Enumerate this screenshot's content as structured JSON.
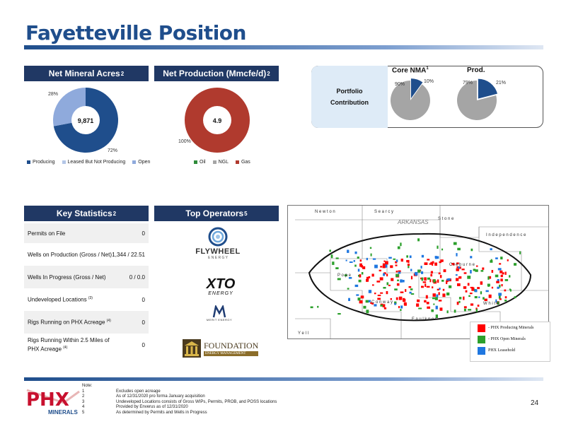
{
  "title": "Fayetteville Position",
  "net_mineral_acres": {
    "header": "Net Mineral Acres",
    "header_sup": "2",
    "center_value": "9,871",
    "label_open_pct": "28%",
    "label_producing_pct": "72%",
    "legend": [
      "Producing",
      "Leased But Not Producing",
      "Open"
    ],
    "colors": {
      "producing": "#1f4e8c",
      "leased": "#b4c7e7",
      "open": "#8faadc"
    }
  },
  "net_production": {
    "header": "Net Production (Mmcfe/d)",
    "header_sup": "2",
    "center_value": "4.9",
    "label_gas_pct": "100%",
    "legend": [
      "Oil",
      "NGL",
      "Gas"
    ],
    "colors": {
      "oil": "#2e8b3a",
      "ngl": "#a5a5a5",
      "gas": "#b03a2e"
    }
  },
  "portfolio": {
    "label_line1": "Portfolio",
    "label_line2": "Contribution",
    "core_nma": {
      "title": "Core NMA",
      "title_sup": "1",
      "rest_label": "90%",
      "slice_label": "10%"
    },
    "prod": {
      "title": "Prod.",
      "rest_label": "79%",
      "slice_label": "21%"
    },
    "colors": {
      "slice": "#1f4e8c",
      "rest": "#a5a5a5"
    }
  },
  "chart_data": [
    {
      "type": "pie",
      "categories": [
        "Producing",
        "Leased But Not Producing",
        "Open"
      ],
      "values": [
        72,
        0,
        28
      ]
    },
    {
      "type": "pie",
      "categories": [
        "Oil",
        "NGL",
        "Gas"
      ],
      "values": [
        0,
        0,
        100
      ]
    },
    {
      "type": "pie",
      "title": "Core NMA",
      "values": [
        10,
        90
      ]
    },
    {
      "type": "pie",
      "title": "Prod.",
      "values": [
        21,
        79
      ]
    }
  ],
  "key_statistics": {
    "header": "Key Statistics",
    "header_sup": "2",
    "rows": [
      {
        "label": "Permits on File",
        "sup": "",
        "value": "0"
      },
      {
        "label": "Wells on Production (Gross / Net)",
        "sup": "",
        "value": "1,344 / 22.51"
      },
      {
        "label": "Wells In Progress (Gross / Net)",
        "sup": "",
        "value": "0 / 0.0"
      },
      {
        "label": "Undeveloped Locations",
        "sup": "(3)",
        "value": "0"
      },
      {
        "label": "Rigs Running on PHX Acreage",
        "sup": "(4)",
        "value": "0"
      },
      {
        "label": "Rigs Running Within 2.5 Miles of",
        "label2": "PHX Acreage",
        "sup": "(4)",
        "value": "0"
      }
    ]
  },
  "top_operators": {
    "header": "Top Operators",
    "header_sup": "5",
    "flywheel": {
      "name": "FLYWHEEL",
      "sub": "E N E R G Y"
    },
    "xto": {
      "name": "XTO",
      "sub": "ENERGY"
    },
    "merit": {
      "name": "MERIT ENERGY"
    },
    "foundation": {
      "name": "FOUNDATION",
      "sub": "ENERGY MANAGEMENT"
    }
  },
  "map": {
    "labels": {
      "newton": "N e w t o n",
      "searcy": "S e a r c y",
      "arkansas": "ARKANSAS",
      "stone": "S t o n e",
      "independence": "I n d e p e n d e n c e",
      "pope": "P o p e",
      "cleburne": "C l e b u r n e",
      "conway": "C o n w a y",
      "white": "W h i t e",
      "faulkner": "F a u l k n e r",
      "yell": "Y e l l"
    },
    "legend": [
      {
        "label": "- PHX Producing Minerals",
        "color": "#ff0000"
      },
      {
        "label": "- PHX Open Minerals",
        "color": "#2ca02c"
      },
      {
        "label": "PHX Leasehold",
        "color": "#1f77e0"
      }
    ]
  },
  "logo": {
    "main": "PHX",
    "sub": "MINERALS"
  },
  "notes": {
    "heading": "Note:",
    "items": [
      {
        "num": "1",
        "text": "Excludes open acreage"
      },
      {
        "num": "2",
        "text": "As of 12/31/2020 pro forma January acquisition"
      },
      {
        "num": "3",
        "text": "Undeveloped Locations consists of Gross WIPs, Permits, PROB, and POSS locations"
      },
      {
        "num": "4",
        "text": "Provided by Enverus as of 12/31/2020"
      },
      {
        "num": "5",
        "text": "As determined by Permits and Wells in Progress"
      }
    ]
  },
  "page_number": "24"
}
